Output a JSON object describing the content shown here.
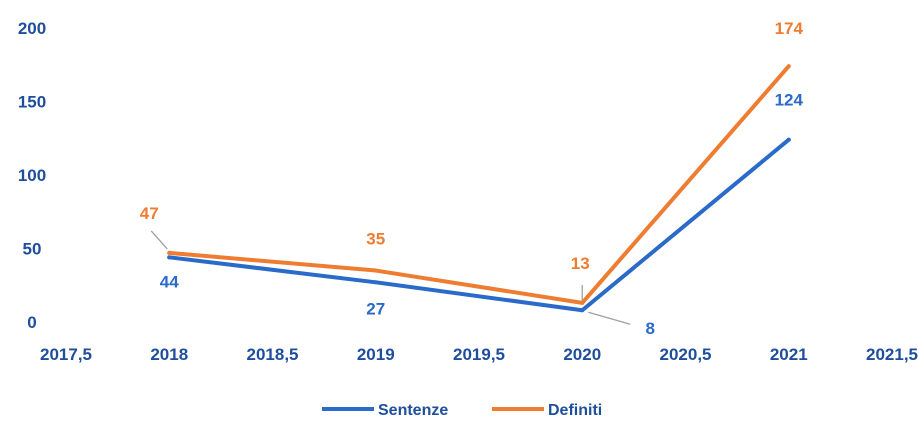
{
  "chart_data": {
    "type": "line",
    "title": "",
    "xlabel": "",
    "ylabel": "",
    "xlim": [
      2017.5,
      2021.5
    ],
    "ylim": [
      0,
      200
    ],
    "xticks": [
      "2017,5",
      "2018",
      "2018,5",
      "2019",
      "2019,5",
      "2020",
      "2020,5",
      "2021",
      "2021,5"
    ],
    "yticks": [
      "0",
      "50",
      "100",
      "150",
      "200"
    ],
    "grid": false,
    "legend_position": "bottom",
    "series": [
      {
        "name": "Sentenze",
        "color": "#2a6ac8",
        "x": [
          2018,
          2019,
          2020,
          2021
        ],
        "values": [
          44,
          27,
          8,
          124
        ],
        "labels": [
          "44",
          "27",
          "8",
          "124"
        ]
      },
      {
        "name": "Definiti",
        "color": "#ee7d31",
        "x": [
          2018,
          2019,
          2020,
          2021
        ],
        "values": [
          47,
          35,
          13,
          174
        ],
        "labels": [
          "47",
          "35",
          "13",
          "174"
        ]
      }
    ]
  }
}
